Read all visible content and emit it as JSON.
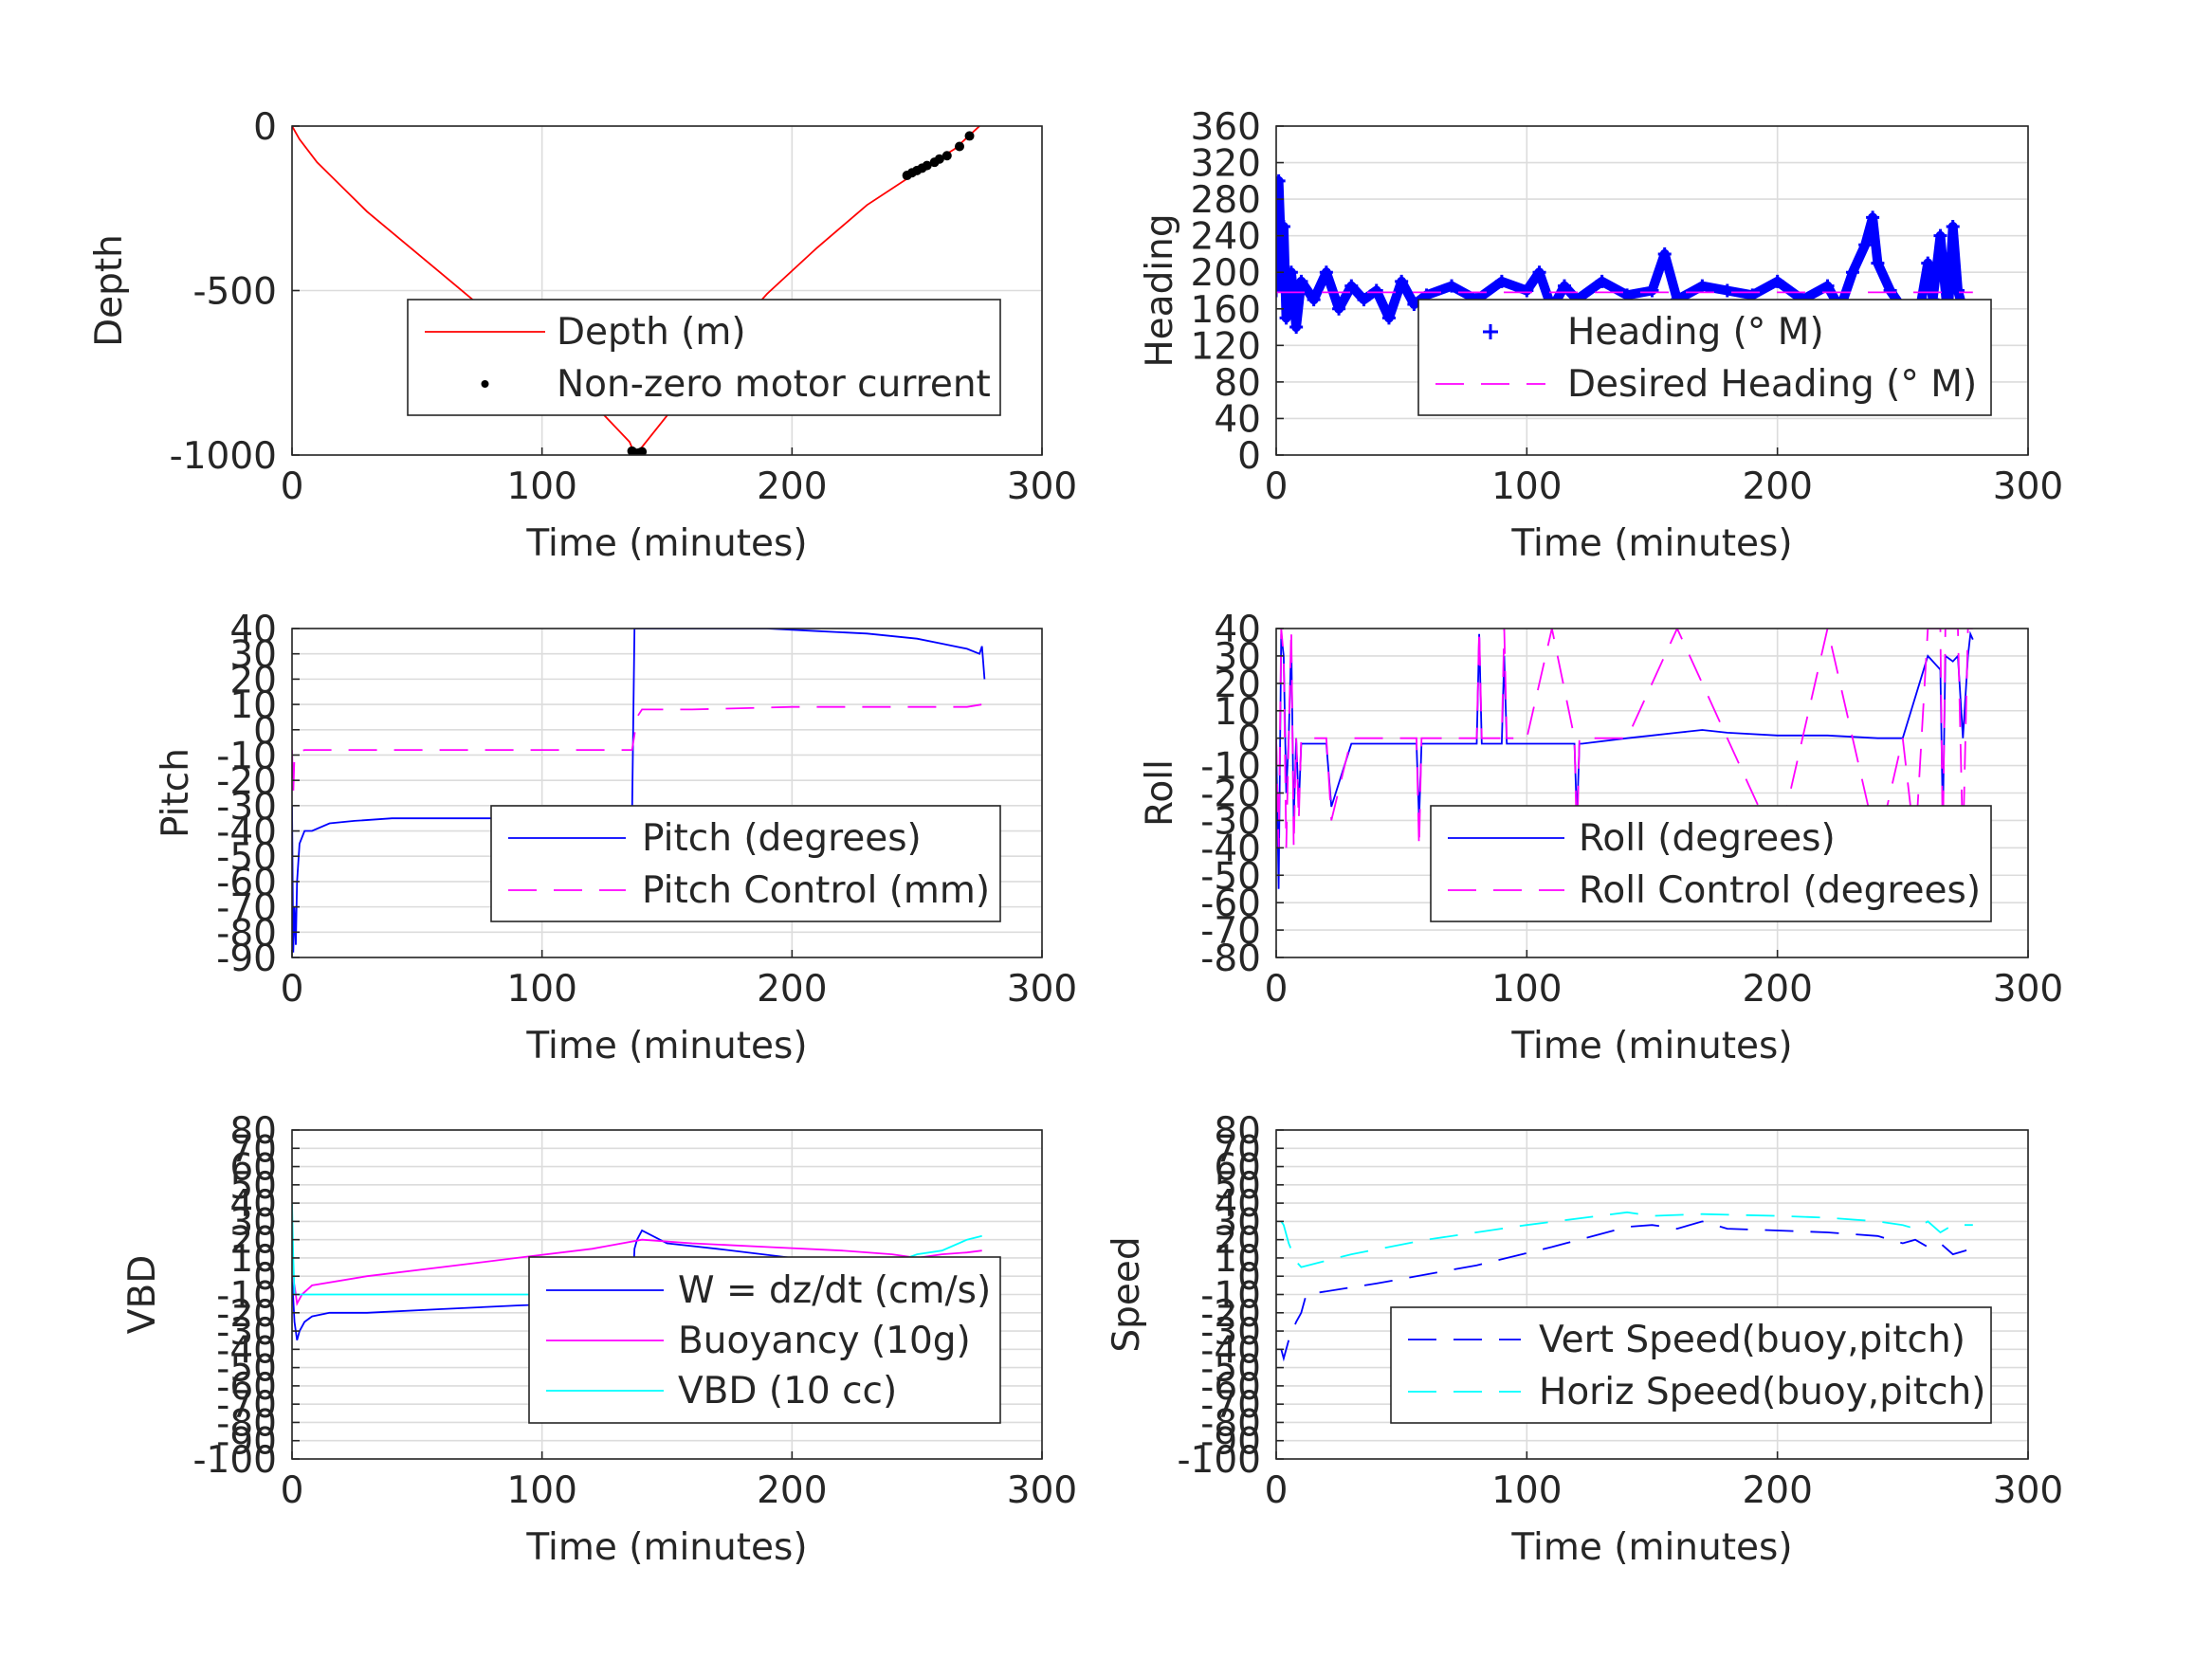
{
  "chart_data": [
    {
      "id": "depth",
      "type": "line",
      "xlabel": "Time (minutes)",
      "ylabel": "Depth",
      "xlim": [
        0,
        300
      ],
      "ylim": [
        -1000,
        0
      ],
      "xticks": [
        0,
        100,
        200,
        300
      ],
      "yticks": [
        -1000,
        -500,
        0
      ],
      "ytick_labels": [
        "-1000",
        "-500",
        "0"
      ],
      "grid": true,
      "legend": "lower-right",
      "series": [
        {
          "name": "Depth (m)",
          "style": "solid",
          "color": "#ff0000",
          "x": [
            0,
            3,
            10,
            30,
            60,
            90,
            120,
            135,
            137,
            139,
            150,
            170,
            190,
            210,
            230,
            250,
            265,
            275
          ],
          "y": [
            0,
            -40,
            -110,
            -260,
            -450,
            -640,
            -840,
            -960,
            -995,
            -985,
            -880,
            -680,
            -510,
            -370,
            -240,
            -140,
            -70,
            0
          ]
        },
        {
          "name": "Non-zero motor current",
          "style": "dots",
          "color": "#000000",
          "x": [
            136,
            137,
            138,
            139,
            140,
            246,
            248,
            250,
            252,
            254,
            257,
            259,
            262,
            267,
            271
          ],
          "y": [
            -988,
            -993,
            -996,
            -993,
            -990,
            -150,
            -142,
            -135,
            -128,
            -120,
            -110,
            -100,
            -90,
            -62,
            -30
          ]
        }
      ]
    },
    {
      "id": "heading",
      "type": "line",
      "xlabel": "Time (minutes)",
      "ylabel": "Heading",
      "xlim": [
        0,
        300
      ],
      "ylim": [
        0,
        360
      ],
      "xticks": [
        0,
        100,
        200,
        300
      ],
      "yticks": [
        0,
        40,
        80,
        120,
        160,
        200,
        240,
        280,
        320,
        360
      ],
      "ytick_labels": [
        "0",
        "40",
        "80",
        "120",
        "160",
        "200",
        "240",
        "280",
        "320",
        "360"
      ],
      "grid": true,
      "legend": "lower-right",
      "series": [
        {
          "name": "Heading (° M)",
          "style": "plus",
          "color": "#0000ff",
          "x": [
            0,
            1,
            2,
            3,
            4,
            6,
            8,
            10,
            15,
            20,
            25,
            30,
            35,
            40,
            45,
            50,
            55,
            60,
            70,
            80,
            90,
            100,
            105,
            110,
            115,
            120,
            130,
            140,
            150,
            155,
            160,
            170,
            180,
            190,
            200,
            210,
            220,
            225,
            230,
            235,
            238,
            240,
            245,
            250,
            255,
            260,
            262,
            265,
            268,
            270,
            272,
            275,
            278
          ],
          "y": [
            180,
            300,
            220,
            250,
            150,
            200,
            140,
            190,
            170,
            200,
            160,
            185,
            170,
            180,
            150,
            190,
            165,
            175,
            185,
            170,
            190,
            180,
            200,
            160,
            185,
            170,
            190,
            175,
            180,
            220,
            170,
            185,
            180,
            175,
            190,
            170,
            185,
            160,
            200,
            230,
            260,
            210,
            180,
            160,
            130,
            210,
            170,
            240,
            150,
            250,
            180,
            150,
            140
          ]
        },
        {
          "name": "Desired Heading (° M)",
          "style": "dashed",
          "color": "#ff00ff",
          "x": [
            0,
            278
          ],
          "y": [
            178,
            178
          ]
        }
      ]
    },
    {
      "id": "pitch",
      "type": "line",
      "xlabel": "Time (minutes)",
      "ylabel": "Pitch",
      "xlim": [
        0,
        300
      ],
      "ylim": [
        -90,
        40
      ],
      "xticks": [
        0,
        100,
        200,
        300
      ],
      "yticks": [
        -90,
        -80,
        -70,
        -60,
        -50,
        -40,
        -30,
        -20,
        -10,
        0,
        10,
        20,
        30,
        40
      ],
      "ytick_labels": [
        "-90",
        "-80",
        "-70",
        "-60",
        "-50",
        "-40",
        "-30",
        "-20",
        "-10",
        "0",
        "10",
        "20",
        "30",
        "40"
      ],
      "grid": true,
      "legend": "lower-right",
      "series": [
        {
          "name": "Pitch (degrees)",
          "style": "solid",
          "color": "#0000ff",
          "x": [
            0,
            0.5,
            1,
            1.5,
            2,
            3,
            5,
            8,
            15,
            25,
            40,
            60,
            80,
            100,
            120,
            130,
            136,
            137,
            138,
            150,
            170,
            190,
            210,
            230,
            250,
            260,
            270,
            275,
            276,
            277
          ],
          "y": [
            -30,
            -88,
            -70,
            -85,
            -60,
            -45,
            -40,
            -40,
            -37,
            -36,
            -35,
            -35,
            -35,
            -35,
            -35,
            -34,
            -35,
            40,
            40,
            40,
            40,
            40,
            39,
            38,
            36,
            34,
            32,
            30,
            33,
            20
          ]
        },
        {
          "name": "Pitch Control (mm)",
          "style": "dashed",
          "color": "#ff00ff",
          "x": [
            0,
            0.5,
            1,
            2,
            5,
            40,
            80,
            120,
            136,
            137,
            138,
            140,
            160,
            200,
            240,
            270,
            276
          ],
          "y": [
            -8,
            -25,
            -10,
            -9,
            -8,
            -8,
            -8,
            -8,
            -8,
            -2,
            5,
            8,
            8,
            9,
            9,
            9,
            10
          ]
        }
      ]
    },
    {
      "id": "roll",
      "type": "line",
      "xlabel": "Time (minutes)",
      "ylabel": "Roll",
      "xlim": [
        0,
        300
      ],
      "ylim": [
        -80,
        40
      ],
      "xticks": [
        0,
        100,
        200,
        300
      ],
      "yticks": [
        -80,
        -70,
        -60,
        -50,
        -40,
        -30,
        -20,
        -10,
        0,
        10,
        20,
        30,
        40
      ],
      "ytick_labels": [
        "-80",
        "-70",
        "-60",
        "-50",
        "-40",
        "-30",
        "-20",
        "-10",
        "0",
        "10",
        "20",
        "30",
        "40"
      ],
      "grid": true,
      "legend": "lower-right",
      "series": [
        {
          "name": "Roll (degrees)",
          "style": "solid",
          "color": "#0000ff",
          "x": [
            0,
            1,
            2,
            3,
            4,
            5,
            6,
            7,
            8,
            9,
            10,
            12,
            14,
            20,
            22,
            30,
            35,
            40,
            56,
            57,
            58,
            80,
            81,
            82,
            90,
            91,
            92,
            100,
            110,
            119,
            120,
            121,
            122,
            140,
            150,
            160,
            170,
            180,
            200,
            220,
            240,
            250,
            260,
            265,
            266,
            267,
            270,
            272,
            274,
            276,
            277,
            278
          ],
          "y": [
            0,
            -55,
            38,
            30,
            -20,
            0,
            35,
            -30,
            0,
            -25,
            -2,
            -2,
            -2,
            -2,
            -25,
            -2,
            -2,
            -2,
            -2,
            -30,
            -2,
            -2,
            38,
            -2,
            -2,
            30,
            -2,
            -2,
            -2,
            -2,
            -30,
            -2,
            -2,
            0,
            1,
            2,
            3,
            2,
            1,
            1,
            0,
            0,
            30,
            25,
            -30,
            30,
            28,
            30,
            0,
            30,
            38,
            36
          ]
        },
        {
          "name": "Roll Control (degrees)",
          "style": "dashed",
          "color": "#ff00ff",
          "x": [
            0,
            1,
            2,
            3,
            4,
            5,
            6,
            7,
            8,
            9,
            10,
            12,
            14,
            20,
            22,
            30,
            35,
            40,
            56,
            57,
            58,
            80,
            81,
            82,
            90,
            91,
            92,
            100,
            110,
            119,
            120,
            121,
            122,
            140,
            160,
            180,
            200,
            210,
            220,
            240,
            250,
            255,
            260,
            265,
            266,
            267,
            270,
            272,
            274,
            276,
            277,
            278
          ],
          "y": [
            0,
            -40,
            40,
            30,
            -40,
            0,
            40,
            -40,
            0,
            -30,
            0,
            0,
            0,
            0,
            -30,
            0,
            0,
            0,
            0,
            -40,
            0,
            0,
            40,
            0,
            0,
            40,
            0,
            0,
            40,
            0,
            -40,
            0,
            0,
            0,
            40,
            0,
            -40,
            0,
            40,
            -40,
            0,
            -40,
            40,
            40,
            -40,
            40,
            40,
            40,
            -40,
            40,
            40,
            40
          ]
        }
      ]
    },
    {
      "id": "vbd",
      "type": "line",
      "xlabel": "Time (minutes)",
      "ylabel": "VBD",
      "xlim": [
        0,
        300
      ],
      "ylim": [
        -100,
        80
      ],
      "xticks": [
        0,
        100,
        200,
        300
      ],
      "yticks": [
        -100,
        -90,
        -80,
        -70,
        -60,
        -50,
        -40,
        -30,
        -20,
        -10,
        0,
        10,
        20,
        30,
        40,
        50,
        60,
        70,
        80
      ],
      "ytick_labels": [
        "-100",
        "-90",
        "-80",
        "-70",
        "-60",
        "-50",
        "-40",
        "-30",
        "-20",
        "-10",
        "0",
        "10",
        "20",
        "30",
        "40",
        "50",
        "60",
        "70",
        "80"
      ],
      "grid": true,
      "legend": "lower-right",
      "series": [
        {
          "name": "W = dz/dt (cm/s)",
          "style": "solid",
          "color": "#0000ff",
          "x": [
            0,
            1,
            2,
            3,
            5,
            8,
            15,
            30,
            60,
            90,
            110,
            120,
            130,
            136,
            137,
            138,
            140,
            150,
            170,
            200,
            230,
            250,
            265,
            270,
            275,
            277
          ],
          "y": [
            0,
            -25,
            -35,
            -30,
            -25,
            -22,
            -20,
            -20,
            -18,
            -16,
            -15,
            -15,
            -15,
            -16,
            15,
            20,
            25,
            18,
            15,
            10,
            8,
            6,
            8,
            7,
            8,
            5
          ]
        },
        {
          "name": "Buoyancy (10g)",
          "style": "solid",
          "color": "#ff00ff",
          "x": [
            0,
            1,
            2,
            4,
            8,
            30,
            60,
            90,
            120,
            140,
            160,
            190,
            220,
            240,
            250,
            260,
            270,
            276
          ],
          "y": [
            0,
            -5,
            -15,
            -10,
            -5,
            0,
            5,
            10,
            15,
            20,
            18,
            16,
            14,
            12,
            10,
            12,
            13,
            14
          ]
        },
        {
          "name": "VBD (10 cc)",
          "style": "solid",
          "color": "#00ffff",
          "x": [
            0,
            0.5,
            1,
            2,
            5,
            30,
            80,
            120,
            136,
            137,
            140,
            180,
            220,
            240,
            250,
            260,
            270,
            276
          ],
          "y": [
            40,
            10,
            -10,
            -10,
            -10,
            -10,
            -10,
            -10,
            -10,
            5,
            7,
            7,
            7,
            7,
            12,
            14,
            20,
            22
          ]
        }
      ]
    },
    {
      "id": "speed",
      "type": "line",
      "xlabel": "Time (minutes)",
      "ylabel": "Speed",
      "xlim": [
        0,
        300
      ],
      "ylim": [
        -100,
        80
      ],
      "xticks": [
        0,
        100,
        200,
        300
      ],
      "yticks": [
        -100,
        -90,
        -80,
        -70,
        -60,
        -50,
        -40,
        -30,
        -20,
        -10,
        0,
        10,
        20,
        30,
        40,
        50,
        60,
        70,
        80
      ],
      "ytick_labels": [
        "-100",
        "-90",
        "-80",
        "-70",
        "-60",
        "-50",
        "-40",
        "-30",
        "-20",
        "-10",
        "0",
        "10",
        "20",
        "30",
        "40",
        "50",
        "60",
        "70",
        "80"
      ],
      "grid": true,
      "legend": "lower-right",
      "series": [
        {
          "name": "Vert Speed(buoy,pitch)",
          "style": "dashed",
          "color": "#0000ff",
          "x": [
            2,
            3,
            5,
            8,
            10,
            12,
            40,
            80,
            110,
            140,
            150,
            160,
            170,
            180,
            200,
            220,
            240,
            250,
            255,
            260,
            265,
            270,
            275,
            278
          ],
          "y": [
            -40,
            -45,
            -35,
            -25,
            -20,
            -10,
            -4,
            6,
            16,
            27,
            28,
            26,
            30,
            26,
            25,
            24,
            22,
            18,
            20,
            16,
            18,
            12,
            14,
            15
          ]
        },
        {
          "name": "Horiz Speed(buoy,pitch)",
          "style": "dashed",
          "color": "#00ffff",
          "x": [
            2,
            3,
            5,
            8,
            10,
            30,
            60,
            100,
            140,
            150,
            170,
            200,
            220,
            240,
            250,
            255,
            260,
            265,
            270,
            278
          ],
          "y": [
            30,
            28,
            18,
            8,
            5,
            12,
            20,
            28,
            35,
            33,
            34,
            33,
            32,
            30,
            28,
            26,
            30,
            24,
            28,
            28
          ]
        }
      ]
    }
  ]
}
